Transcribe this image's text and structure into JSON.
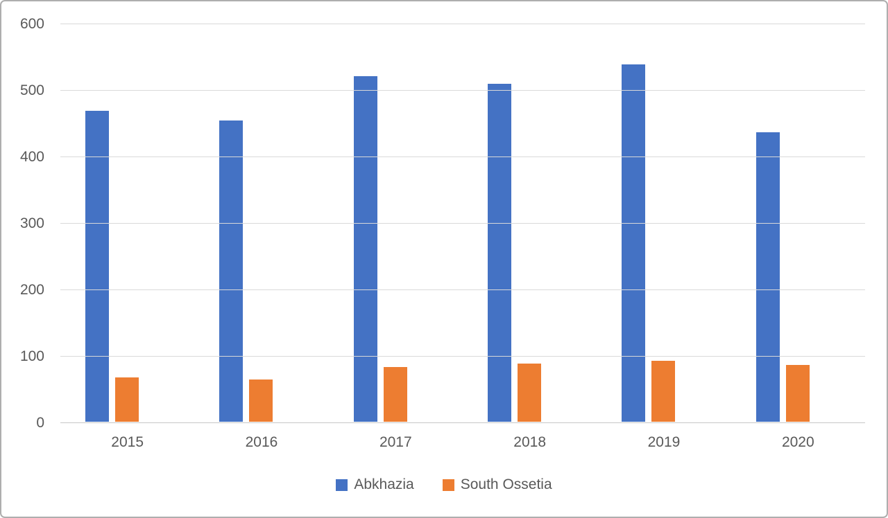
{
  "chart_data": {
    "type": "bar",
    "categories": [
      "2015",
      "2016",
      "2017",
      "2018",
      "2019",
      "2020"
    ],
    "series": [
      {
        "name": "Abkhazia",
        "color": "#4472C4",
        "values": [
          468,
          453,
          520,
          508,
          538,
          435
        ]
      },
      {
        "name": "South Ossetia",
        "color": "#ED7D31",
        "values": [
          67,
          64,
          82,
          88,
          92,
          85
        ]
      }
    ],
    "title": "",
    "xlabel": "",
    "ylabel": "",
    "ylim": [
      0,
      600
    ],
    "ytick_step": 100,
    "yticks": [
      "600",
      "500",
      "400",
      "300",
      "200",
      "100",
      "0"
    ],
    "grid": "horizontal-only",
    "legend_position": "bottom-center"
  },
  "colors": {
    "gridline": "#d9d9d9",
    "axis_line": "#c6c6c6",
    "tick_text": "#595959",
    "series_blue": "#4472C4",
    "series_orange": "#ED7D31",
    "background": "#ffffff",
    "frame_border": "#aeaeae"
  }
}
